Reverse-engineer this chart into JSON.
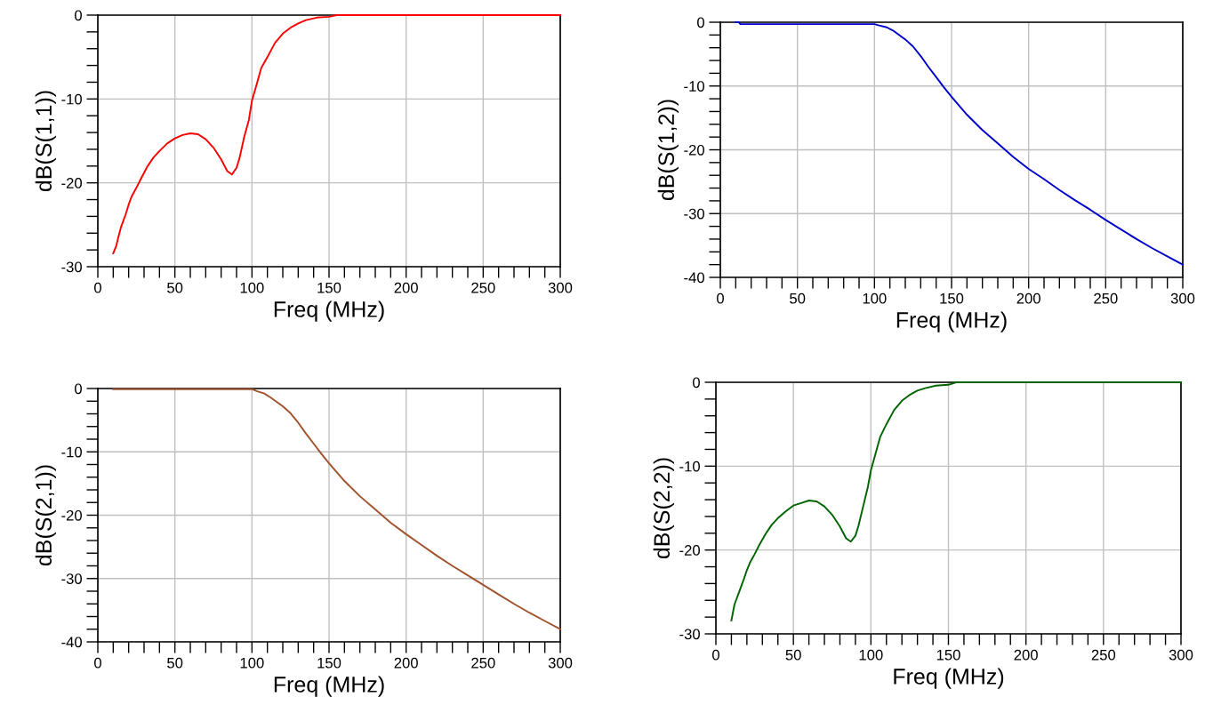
{
  "chart_data": [
    {
      "type": "line",
      "xlabel": "Freq (MHz)",
      "ylabel": "dB(S(1,1))",
      "grid": true,
      "xlim": [
        0,
        300
      ],
      "ylim": [
        -30,
        0
      ],
      "xticks": [
        0,
        {
          "value": 10,
          "label": null
        },
        {
          "value": 20,
          "label": null
        },
        {
          "value": 30,
          "label": null
        },
        {
          "value": 40,
          "label": null
        },
        50,
        {
          "value": 60,
          "label": null
        },
        {
          "value": 70,
          "label": null
        },
        {
          "value": 80,
          "label": null
        },
        {
          "value": 90,
          "label": null
        },
        100,
        {
          "value": 110,
          "label": null
        },
        {
          "value": 120,
          "label": null
        },
        {
          "value": 130,
          "label": null
        },
        {
          "value": 140,
          "label": null
        },
        150,
        {
          "value": 160,
          "label": null
        },
        {
          "value": 170,
          "label": null
        },
        {
          "value": 180,
          "label": null
        },
        {
          "value": 190,
          "label": null
        },
        200,
        {
          "value": 210,
          "label": null
        },
        {
          "value": 220,
          "label": null
        },
        {
          "value": 230,
          "label": null
        },
        {
          "value": 240,
          "label": null
        },
        250,
        {
          "value": 260,
          "label": null
        },
        {
          "value": 270,
          "label": null
        },
        {
          "value": 280,
          "label": null
        },
        {
          "value": 290,
          "label": null
        },
        300
      ],
      "yticks": [
        -30,
        {
          "value": -28,
          "label": null
        },
        {
          "value": -26,
          "label": null
        },
        {
          "value": -24,
          "label": null
        },
        {
          "value": -22,
          "label": null
        },
        -20,
        {
          "value": -18,
          "label": null
        },
        {
          "value": -16,
          "label": null
        },
        {
          "value": -14,
          "label": null
        },
        {
          "value": -12,
          "label": null
        },
        -10,
        {
          "value": -8,
          "label": null
        },
        {
          "value": -6,
          "label": null
        },
        {
          "value": -4,
          "label": null
        },
        {
          "value": -2,
          "label": null
        },
        0
      ],
      "series": [
        {
          "color": "#ff0000",
          "x": [
            10,
            12,
            13,
            15,
            18,
            20,
            22,
            25,
            28,
            32,
            36,
            40,
            45,
            50,
            55,
            60,
            65,
            70,
            75,
            80,
            84,
            87,
            90,
            92,
            95,
            98,
            100,
            103,
            106,
            110,
            115,
            120,
            125,
            130,
            135,
            142,
            150,
            155,
            200,
            250,
            300
          ],
          "values": [
            -28.4,
            -27.5,
            -26.7,
            -25.3,
            -23.8,
            -22.6,
            -21.6,
            -20.6,
            -19.5,
            -18.1,
            -17.0,
            -16.2,
            -15.3,
            -14.7,
            -14.3,
            -14.1,
            -14.2,
            -14.8,
            -15.8,
            -17.2,
            -18.6,
            -19.0,
            -18.2,
            -17.0,
            -14.5,
            -12.5,
            -10.2,
            -8.3,
            -6.3,
            -5.0,
            -3.3,
            -2.2,
            -1.5,
            -1.0,
            -0.6,
            -0.3,
            -0.2,
            0,
            0,
            0,
            0
          ]
        }
      ]
    },
    {
      "type": "line",
      "xlabel": "Freq (MHz)",
      "ylabel": "dB(S(1,2))",
      "grid": true,
      "xlim": [
        0,
        300
      ],
      "ylim": [
        -40,
        0
      ],
      "xticks": [
        0,
        {
          "value": 10,
          "label": null
        },
        {
          "value": 20,
          "label": null
        },
        {
          "value": 30,
          "label": null
        },
        {
          "value": 40,
          "label": null
        },
        50,
        {
          "value": 60,
          "label": null
        },
        {
          "value": 70,
          "label": null
        },
        {
          "value": 80,
          "label": null
        },
        {
          "value": 90,
          "label": null
        },
        100,
        {
          "value": 110,
          "label": null
        },
        {
          "value": 120,
          "label": null
        },
        {
          "value": 130,
          "label": null
        },
        {
          "value": 140,
          "label": null
        },
        150,
        {
          "value": 160,
          "label": null
        },
        {
          "value": 170,
          "label": null
        },
        {
          "value": 180,
          "label": null
        },
        {
          "value": 190,
          "label": null
        },
        200,
        {
          "value": 210,
          "label": null
        },
        {
          "value": 220,
          "label": null
        },
        {
          "value": 230,
          "label": null
        },
        {
          "value": 240,
          "label": null
        },
        250,
        {
          "value": 260,
          "label": null
        },
        {
          "value": 270,
          "label": null
        },
        {
          "value": 280,
          "label": null
        },
        {
          "value": 290,
          "label": null
        },
        300
      ],
      "yticks": [
        -40,
        {
          "value": -38,
          "label": null
        },
        {
          "value": -36,
          "label": null
        },
        {
          "value": -34,
          "label": null
        },
        {
          "value": -32,
          "label": null
        },
        -30,
        {
          "value": -28,
          "label": null
        },
        {
          "value": -26,
          "label": null
        },
        {
          "value": -24,
          "label": null
        },
        {
          "value": -22,
          "label": null
        },
        -20,
        {
          "value": -18,
          "label": null
        },
        {
          "value": -16,
          "label": null
        },
        {
          "value": -14,
          "label": null
        },
        {
          "value": -12,
          "label": null
        },
        -10,
        {
          "value": -8,
          "label": null
        },
        {
          "value": -6,
          "label": null
        },
        {
          "value": -4,
          "label": null
        },
        {
          "value": -2,
          "label": null
        },
        0
      ],
      "series": [
        {
          "color": "#0000cc",
          "x": [
            10,
            12,
            13,
            100,
            103,
            108,
            112,
            120,
            125,
            130,
            135,
            140,
            145,
            150,
            160,
            170,
            180,
            190,
            200,
            210,
            220,
            230,
            240,
            250,
            260,
            270,
            280,
            290,
            300
          ],
          "values": [
            0,
            0,
            -0.3,
            -0.3,
            -0.5,
            -0.8,
            -1.3,
            -2.7,
            -3.8,
            -5.3,
            -7.0,
            -8.6,
            -10.2,
            -11.7,
            -14.5,
            -16.9,
            -19.0,
            -21.1,
            -23.0,
            -24.6,
            -26.3,
            -27.9,
            -29.4,
            -31.0,
            -32.5,
            -34.0,
            -35.4,
            -36.7,
            -38.0
          ]
        }
      ]
    },
    {
      "type": "line",
      "xlabel": "Freq (MHz)",
      "ylabel": "dB(S(2,1))",
      "grid": true,
      "xlim": [
        0,
        300
      ],
      "ylim": [
        -40,
        0
      ],
      "xticks": [
        0,
        {
          "value": 10,
          "label": null
        },
        {
          "value": 20,
          "label": null
        },
        {
          "value": 30,
          "label": null
        },
        {
          "value": 40,
          "label": null
        },
        50,
        {
          "value": 60,
          "label": null
        },
        {
          "value": 70,
          "label": null
        },
        {
          "value": 80,
          "label": null
        },
        {
          "value": 90,
          "label": null
        },
        100,
        {
          "value": 110,
          "label": null
        },
        {
          "value": 120,
          "label": null
        },
        {
          "value": 130,
          "label": null
        },
        {
          "value": 140,
          "label": null
        },
        150,
        {
          "value": 160,
          "label": null
        },
        {
          "value": 170,
          "label": null
        },
        {
          "value": 180,
          "label": null
        },
        {
          "value": 190,
          "label": null
        },
        200,
        {
          "value": 210,
          "label": null
        },
        {
          "value": 220,
          "label": null
        },
        {
          "value": 230,
          "label": null
        },
        {
          "value": 240,
          "label": null
        },
        250,
        {
          "value": 260,
          "label": null
        },
        {
          "value": 270,
          "label": null
        },
        {
          "value": 280,
          "label": null
        },
        {
          "value": 290,
          "label": null
        },
        300
      ],
      "yticks": [
        -40,
        {
          "value": -38,
          "label": null
        },
        {
          "value": -36,
          "label": null
        },
        {
          "value": -34,
          "label": null
        },
        {
          "value": -32,
          "label": null
        },
        -30,
        {
          "value": -28,
          "label": null
        },
        {
          "value": -26,
          "label": null
        },
        {
          "value": -24,
          "label": null
        },
        {
          "value": -22,
          "label": null
        },
        -20,
        {
          "value": -18,
          "label": null
        },
        {
          "value": -16,
          "label": null
        },
        {
          "value": -14,
          "label": null
        },
        {
          "value": -12,
          "label": null
        },
        -10,
        {
          "value": -8,
          "label": null
        },
        {
          "value": -6,
          "label": null
        },
        {
          "value": -4,
          "label": null
        },
        {
          "value": -2,
          "label": null
        },
        0
      ],
      "series": [
        {
          "color": "#a0522d",
          "x": [
            10,
            100,
            103,
            108,
            112,
            120,
            125,
            130,
            135,
            140,
            145,
            150,
            160,
            170,
            180,
            190,
            200,
            210,
            220,
            230,
            240,
            250,
            260,
            270,
            280,
            290,
            300
          ],
          "values": [
            -0.1,
            -0.1,
            -0.4,
            -0.8,
            -1.4,
            -2.8,
            -3.9,
            -5.4,
            -7.1,
            -8.7,
            -10.3,
            -11.8,
            -14.6,
            -17.0,
            -19.1,
            -21.2,
            -23.0,
            -24.7,
            -26.4,
            -28.0,
            -29.5,
            -31.0,
            -32.5,
            -34.0,
            -35.4,
            -36.7,
            -38.0
          ]
        }
      ]
    },
    {
      "type": "line",
      "xlabel": "Freq (MHz)",
      "ylabel": "dB(S(2,2))",
      "grid": true,
      "xlim": [
        0,
        300
      ],
      "ylim": [
        -30,
        0
      ],
      "xticks": [
        0,
        {
          "value": 10,
          "label": null
        },
        {
          "value": 20,
          "label": null
        },
        {
          "value": 30,
          "label": null
        },
        {
          "value": 40,
          "label": null
        },
        50,
        {
          "value": 60,
          "label": null
        },
        {
          "value": 70,
          "label": null
        },
        {
          "value": 80,
          "label": null
        },
        {
          "value": 90,
          "label": null
        },
        100,
        {
          "value": 110,
          "label": null
        },
        {
          "value": 120,
          "label": null
        },
        {
          "value": 130,
          "label": null
        },
        {
          "value": 140,
          "label": null
        },
        150,
        {
          "value": 160,
          "label": null
        },
        {
          "value": 170,
          "label": null
        },
        {
          "value": 180,
          "label": null
        },
        {
          "value": 190,
          "label": null
        },
        200,
        {
          "value": 210,
          "label": null
        },
        {
          "value": 220,
          "label": null
        },
        {
          "value": 230,
          "label": null
        },
        {
          "value": 240,
          "label": null
        },
        250,
        {
          "value": 260,
          "label": null
        },
        {
          "value": 270,
          "label": null
        },
        {
          "value": 280,
          "label": null
        },
        {
          "value": 290,
          "label": null
        },
        300
      ],
      "yticks": [
        -30,
        {
          "value": -28,
          "label": null
        },
        {
          "value": -26,
          "label": null
        },
        {
          "value": -24,
          "label": null
        },
        {
          "value": -22,
          "label": null
        },
        -20,
        {
          "value": -18,
          "label": null
        },
        {
          "value": -16,
          "label": null
        },
        {
          "value": -14,
          "label": null
        },
        {
          "value": -12,
          "label": null
        },
        -10,
        {
          "value": -8,
          "label": null
        },
        {
          "value": -6,
          "label": null
        },
        {
          "value": -4,
          "label": null
        },
        {
          "value": -2,
          "label": null
        },
        0
      ],
      "series": [
        {
          "color": "#006400",
          "x": [
            10,
            12,
            13,
            15,
            18,
            20,
            22,
            25,
            28,
            32,
            36,
            40,
            45,
            50,
            55,
            60,
            65,
            70,
            75,
            80,
            84,
            87,
            90,
            92,
            95,
            98,
            100,
            103,
            106,
            110,
            115,
            120,
            125,
            130,
            135,
            142,
            150,
            155,
            200,
            250,
            300
          ],
          "values": [
            -28.4,
            -26.5,
            -26.0,
            -25.0,
            -23.5,
            -22.4,
            -21.5,
            -20.5,
            -19.4,
            -18.1,
            -17.0,
            -16.2,
            -15.4,
            -14.7,
            -14.4,
            -14.1,
            -14.2,
            -14.8,
            -15.8,
            -17.2,
            -18.6,
            -19.0,
            -18.3,
            -17.1,
            -14.8,
            -12.5,
            -10.5,
            -8.5,
            -6.5,
            -5.0,
            -3.3,
            -2.2,
            -1.5,
            -1.0,
            -0.7,
            -0.4,
            -0.3,
            0,
            0,
            0,
            0
          ]
        }
      ]
    }
  ]
}
